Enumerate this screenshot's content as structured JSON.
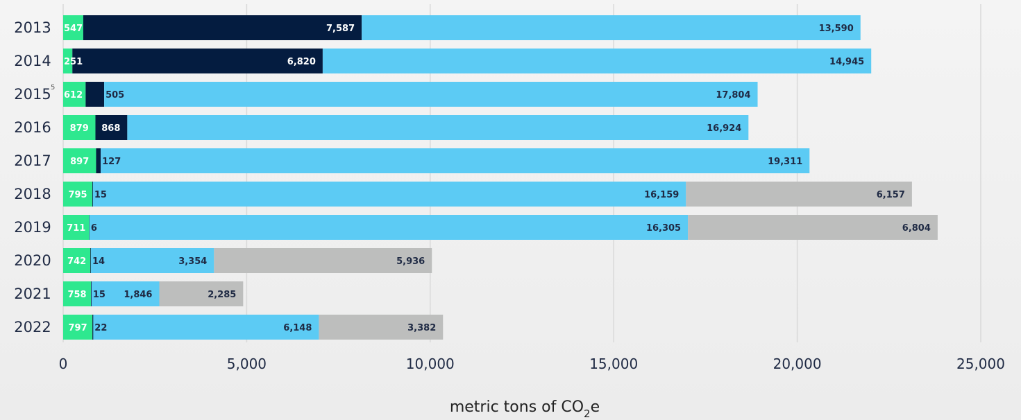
{
  "chart_data": {
    "type": "bar",
    "orientation": "horizontal",
    "stacked": true,
    "categories": [
      "2013",
      "2014",
      "2015",
      "2016",
      "2017",
      "2018",
      "2019",
      "2020",
      "2021",
      "2022"
    ],
    "footnotes": {
      "2015": "5"
    },
    "series": [
      {
        "color": "#2ee88f",
        "label_color": "#ffffff",
        "values": [
          547,
          251,
          612,
          879,
          897,
          795,
          711,
          742,
          758,
          797
        ],
        "labels": [
          "547",
          "251",
          "612",
          "879",
          "897",
          "795",
          "711",
          "742",
          "758",
          "797"
        ]
      },
      {
        "color": "#041c40",
        "label_color": "#ffffff",
        "values": [
          7587,
          6820,
          505,
          868,
          127,
          15,
          6,
          14,
          15,
          22
        ],
        "labels": [
          "7,587",
          "6,820",
          "505",
          "868",
          "127",
          "15",
          "6",
          "14",
          "15",
          "22"
        ]
      },
      {
        "color": "#5ccbf4",
        "label_color": "#1f2a44",
        "values": [
          13590,
          14945,
          17804,
          16924,
          19311,
          16159,
          16305,
          3354,
          1846,
          6148
        ],
        "labels": [
          "13,590",
          "14,945",
          "17,804",
          "16,924",
          "19,311",
          "16,159",
          "16,305",
          "3,354",
          "1,846",
          "6,148"
        ]
      },
      {
        "color": "#bdbebd",
        "label_color": "#1f2a44",
        "values": [
          0,
          0,
          0,
          0,
          0,
          6157,
          6804,
          5936,
          2285,
          3382
        ],
        "labels": [
          "",
          "",
          "",
          "",
          "",
          "6,157",
          "6,804",
          "5,936",
          "2,285",
          "3,382"
        ]
      }
    ],
    "xlim": [
      0,
      25000
    ],
    "xticks": [
      0,
      5000,
      10000,
      15000,
      20000,
      25000
    ],
    "xtick_labels": [
      "0",
      "5,000",
      "10,000",
      "15,000",
      "20,000",
      "25,000"
    ],
    "xlabel_main": "metric tons of CO",
    "xlabel_sub": "2",
    "xlabel_tail": "e",
    "grid": true
  }
}
